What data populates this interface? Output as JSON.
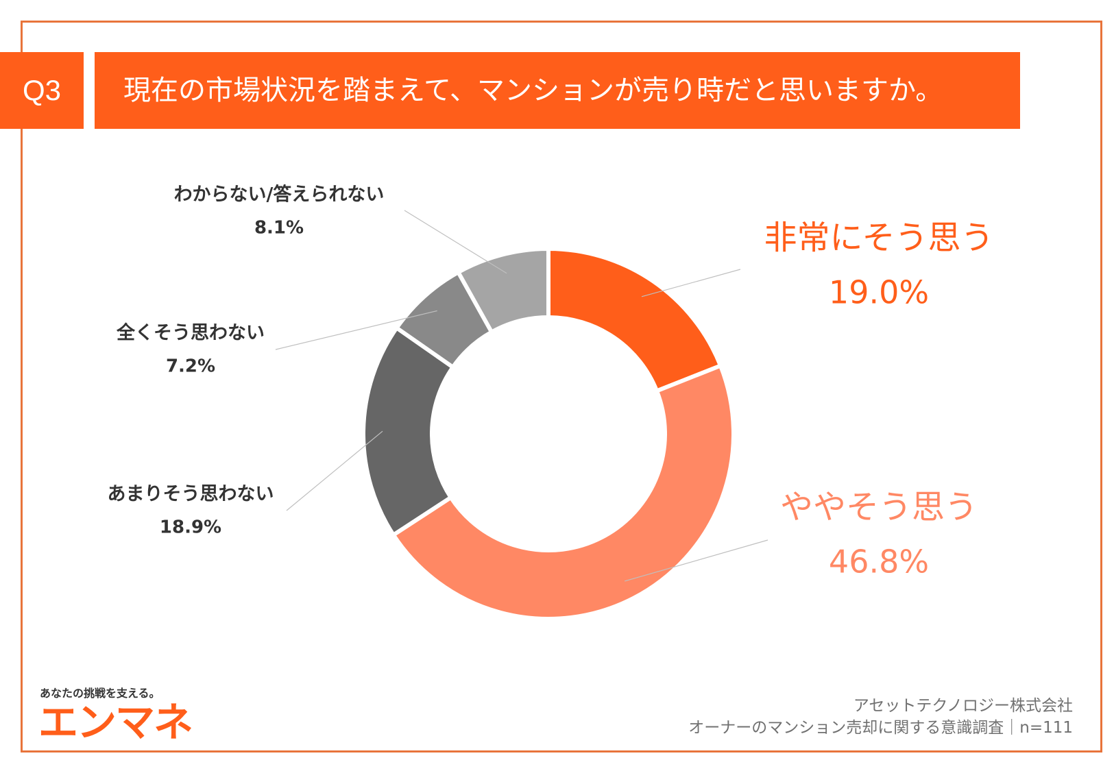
{
  "question": {
    "number": "Q3",
    "text": "現在の市場状況を踏まえて、マンションが売り時だと思いますか。"
  },
  "chart_data": {
    "type": "pie",
    "variant": "donut",
    "title": "現在の市場状況を踏まえて、マンションが売り時だと思いますか。",
    "categories": [
      "非常にそう思う",
      "ややそう思う",
      "あまりそう思わない",
      "全くそう思わない",
      "わからない/答えられない"
    ],
    "values": [
      19.0,
      46.8,
      18.9,
      7.2,
      8.1
    ],
    "value_labels": [
      "19.0%",
      "46.8%",
      "18.9%",
      "7.2%",
      "8.1%"
    ],
    "colors": [
      "#FF5E1A",
      "#FF8864",
      "#666666",
      "#898989",
      "#A5A5A5"
    ],
    "label_colors": [
      "#FF5E1A",
      "#FF8864",
      "#333333",
      "#333333",
      "#333333"
    ],
    "start": "12 o'clock, clockwise"
  },
  "brand": {
    "tagline": "あなたの挑戦を支える。",
    "logo": "エンマネ"
  },
  "footer": {
    "company": "アセットテクノロジー株式会社",
    "survey": "オーナーのマンション売却に関する意識調査｜n=111"
  }
}
